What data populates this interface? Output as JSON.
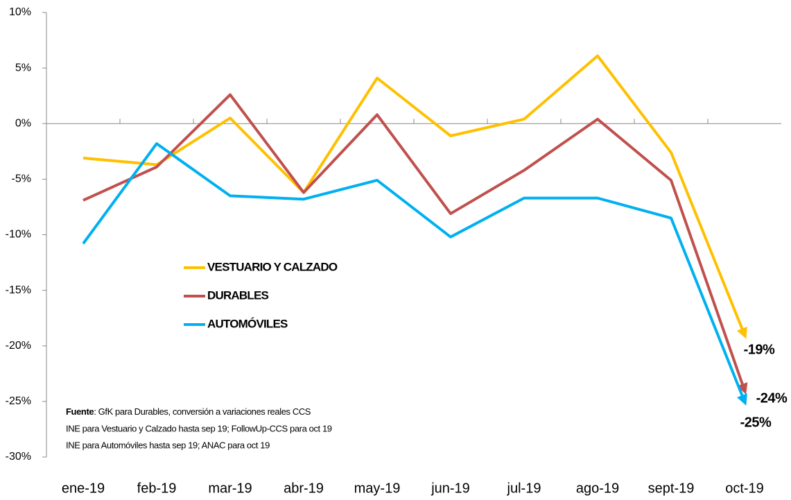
{
  "chart_data": {
    "type": "line",
    "categories": [
      "ene-19",
      "feb-19",
      "mar-19",
      "abr-19",
      "may-19",
      "jun-19",
      "jul-19",
      "ago-19",
      "sept-19",
      "oct-19"
    ],
    "series": [
      {
        "name": "VESTUARIO Y CALZADO",
        "color": "#ffc000",
        "values": [
          -3.1,
          -3.7,
          0.5,
          -6.2,
          4.1,
          -1.1,
          0.4,
          6.1,
          -2.6,
          -19
        ]
      },
      {
        "name": "DURABLES",
        "color": "#c0504d",
        "values": [
          -6.9,
          -3.9,
          2.6,
          -6.2,
          0.8,
          -8.1,
          -4.2,
          0.4,
          -5.1,
          -24
        ]
      },
      {
        "name": "AUTOMÓVILES",
        "color": "#00b0f0",
        "values": [
          -10.8,
          -1.8,
          -6.5,
          -6.8,
          -5.1,
          -10.2,
          -6.7,
          -6.7,
          -8.5,
          -25
        ]
      }
    ],
    "ylim": [
      -30,
      10
    ],
    "yticks": [
      {
        "value": -30,
        "label": "-30%"
      },
      {
        "value": -25,
        "label": "-25%"
      },
      {
        "value": -20,
        "label": "-20%"
      },
      {
        "value": -15,
        "label": "-15%"
      },
      {
        "value": -10,
        "label": "-10%"
      },
      {
        "value": -5,
        "label": "-5%"
      },
      {
        "value": 0,
        "label": "0%"
      },
      {
        "value": 5,
        "label": "5%"
      },
      {
        "value": 10,
        "label": "10%"
      }
    ],
    "grid": false,
    "annotations": [
      "-19%",
      "-24%",
      "-25%"
    ],
    "source": {
      "label": "Fuente",
      "lines": [
        ": GfK para Durables, conversión a variaciones reales CCS",
        "INE para Vestuario y Calzado hasta sep 19; FollowUp-CCS  para oct 19",
        "INE para Automóviles hasta sep 19; ANAC para oct 19"
      ]
    }
  }
}
